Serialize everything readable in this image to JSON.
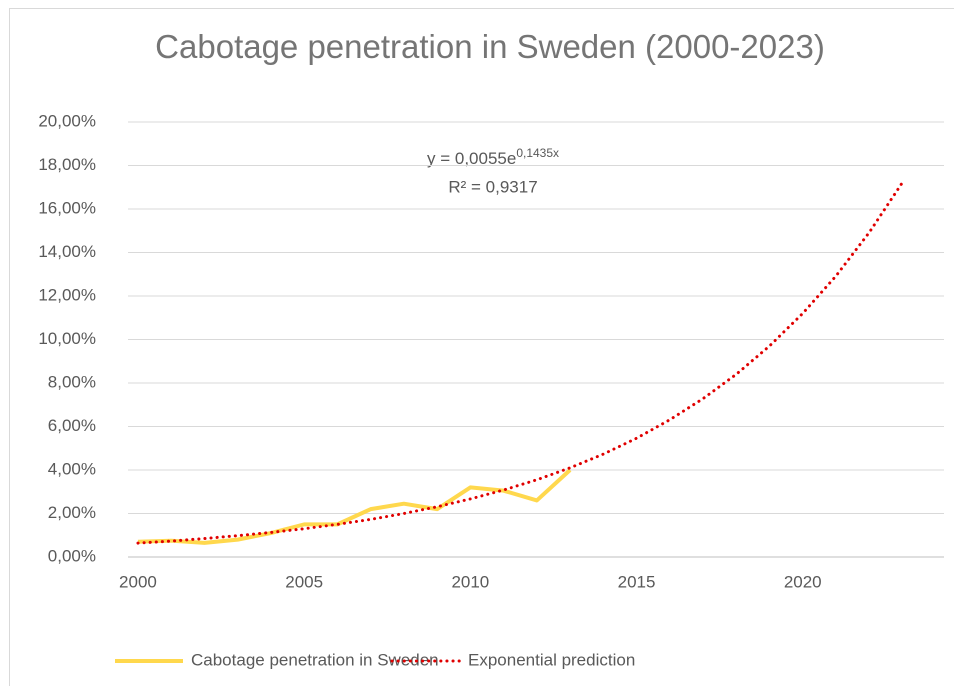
{
  "chart_data": {
    "type": "line",
    "title": "Cabotage penetration in Sweden (2000-2023)",
    "x": [
      2000,
      2001,
      2002,
      2003,
      2004,
      2005,
      2006,
      2007,
      2008,
      2009,
      2010,
      2011,
      2012,
      2013,
      2014,
      2015,
      2016,
      2017,
      2018,
      2019,
      2020,
      2021,
      2022,
      2023
    ],
    "series": [
      {
        "name": "Cabotage penetration in Sweden",
        "color": "#ffd84d",
        "style": "solid",
        "values": [
          0.7,
          0.75,
          0.65,
          0.8,
          1.1,
          1.5,
          1.5,
          2.2,
          2.45,
          2.2,
          3.2,
          3.05,
          2.6,
          4.0,
          null,
          null,
          null,
          null,
          null,
          null,
          null,
          null,
          null,
          null
        ]
      },
      {
        "name": "Exponential prediction",
        "color": "#e00000",
        "style": "dotted",
        "values": [
          0.64,
          0.73,
          0.85,
          0.98,
          1.13,
          1.3,
          1.5,
          1.73,
          2.0,
          2.31,
          2.67,
          3.08,
          3.55,
          4.1,
          4.73,
          5.46,
          6.31,
          7.28,
          8.4,
          9.7,
          11.2,
          12.92,
          14.92,
          17.22
        ]
      }
    ],
    "annotation": {
      "equation": "y = 0,0055e",
      "exponent": "0,1435x",
      "r_squared": "R² = 0,9317"
    },
    "xlim": [
      1999.7,
      2024.25
    ],
    "xticks": [
      2000,
      2005,
      2010,
      2015,
      2020
    ],
    "ylim": [
      0,
      20
    ],
    "yticks": [
      {
        "value": 0,
        "label": "0,00%"
      },
      {
        "value": 2,
        "label": "2,00%"
      },
      {
        "value": 4,
        "label": "4,00%"
      },
      {
        "value": 6,
        "label": "6,00%"
      },
      {
        "value": 8,
        "label": "8,00%"
      },
      {
        "value": 10,
        "label": "10,00%"
      },
      {
        "value": 12,
        "label": "12,00%"
      },
      {
        "value": 14,
        "label": "14,00%"
      },
      {
        "value": 16,
        "label": "16,00%"
      },
      {
        "value": 18,
        "label": "18,00%"
      },
      {
        "value": 20,
        "label": "20,00%"
      }
    ],
    "grid": true,
    "legend": "bottom"
  }
}
